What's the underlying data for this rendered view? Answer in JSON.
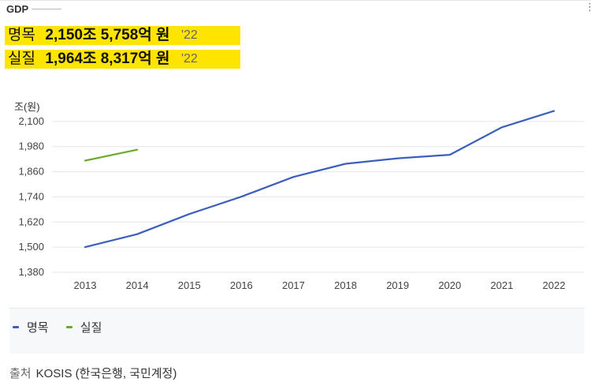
{
  "header": {
    "title": "GDP",
    "menu_icon": "vertical-dots-icon",
    "stats": [
      {
        "label": "명목",
        "value": "2,150조 5,758억 원",
        "year": "'22"
      },
      {
        "label": "실질",
        "value": "1,964조 8,317억 원",
        "year": "'22"
      }
    ]
  },
  "colors": {
    "highlight": "#ffe400",
    "nominal": "#3b5fbd",
    "real": "#6aab2e"
  },
  "chart_data": {
    "type": "line",
    "ylabel": "조(원)",
    "xlabel": "",
    "x": [
      "2013",
      "2014",
      "2015",
      "2016",
      "2017",
      "2018",
      "2019",
      "2020",
      "2021",
      "2022"
    ],
    "yticks": [
      1380,
      1500,
      1620,
      1740,
      1860,
      1980,
      2100
    ],
    "ytick_labels": [
      "1,380",
      "1,500",
      "1,620",
      "1,740",
      "1,860",
      "1,980",
      "2,100"
    ],
    "ylim": [
      1380,
      2190
    ],
    "grid": true,
    "legend": "bottom-left",
    "series": [
      {
        "name": "명목",
        "color": "#3b5fbd",
        "values": [
          1500,
          1562,
          1658,
          1741,
          1835,
          1898,
          1924,
          1941,
          2072,
          2150
        ]
      },
      {
        "name": "실질",
        "color": "#6aab2e",
        "values": [
          1913,
          1965,
          null,
          null,
          null,
          null,
          null,
          null,
          null,
          null
        ]
      }
    ]
  },
  "source": {
    "label": "출처",
    "text": "KOSIS (한국은행, 국민계정)"
  }
}
